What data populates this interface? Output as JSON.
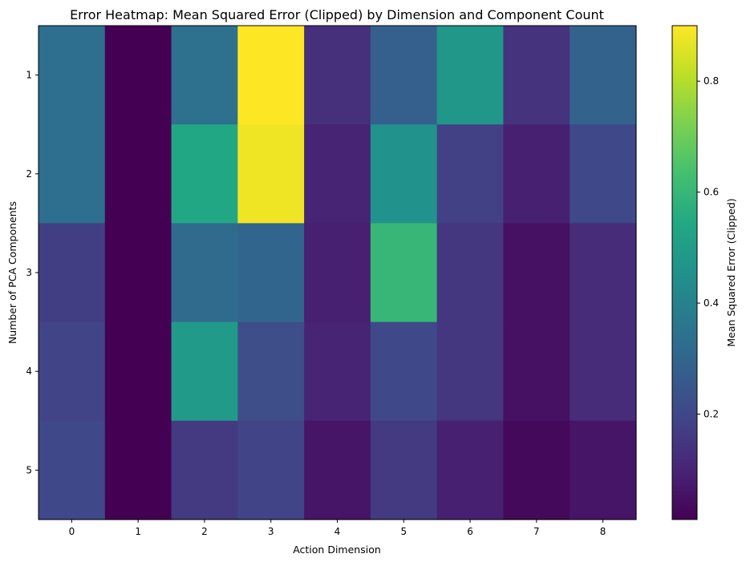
{
  "chart_data": {
    "type": "heatmap",
    "title": "Error Heatmap: Mean Squared Error (Clipped) by Dimension and Component Count",
    "xlabel": "Action Dimension",
    "ylabel": "Number of PCA Components",
    "colorbar_label": "Mean Squared Error (Clipped)",
    "colormap": "viridis",
    "x_categories": [
      "0",
      "1",
      "2",
      "3",
      "4",
      "5",
      "6",
      "7",
      "8"
    ],
    "y_categories": [
      "1",
      "2",
      "3",
      "4",
      "5"
    ],
    "values": [
      [
        0.33,
        0.01,
        0.34,
        0.9,
        0.13,
        0.28,
        0.48,
        0.14,
        0.29
      ],
      [
        0.33,
        0.01,
        0.54,
        0.88,
        0.1,
        0.46,
        0.18,
        0.09,
        0.2
      ],
      [
        0.17,
        0.01,
        0.32,
        0.3,
        0.09,
        0.6,
        0.15,
        0.05,
        0.12
      ],
      [
        0.19,
        0.01,
        0.49,
        0.22,
        0.1,
        0.2,
        0.15,
        0.05,
        0.12
      ],
      [
        0.2,
        0.01,
        0.16,
        0.19,
        0.06,
        0.16,
        0.09,
        0.03,
        0.06
      ]
    ],
    "vmin": 0.01,
    "vmax": 0.9,
    "colorbar_ticks": [
      "0.2",
      "0.4",
      "0.6",
      "0.8"
    ],
    "colorbar_tick_values": [
      0.2,
      0.4,
      0.6,
      0.8
    ]
  }
}
